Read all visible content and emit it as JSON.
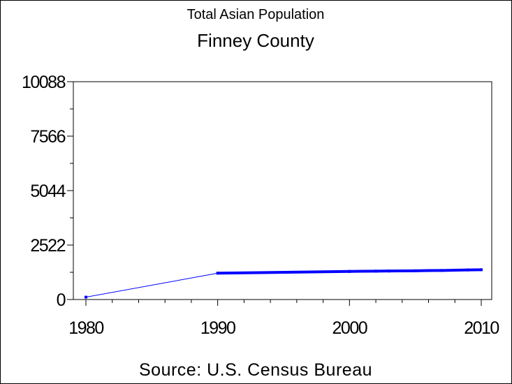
{
  "chart_data": {
    "type": "line",
    "title": "Total Asian Population",
    "subtitle": "Finney County",
    "footnote": "Source: U.S. Census Bureau",
    "xlabel": "",
    "ylabel": "",
    "xlim": [
      1980,
      2010
    ],
    "ylim": [
      0,
      10088
    ],
    "x_ticks": [
      "1980",
      "1990",
      "2000",
      "2010"
    ],
    "y_ticks": [
      "0",
      "2522",
      "5044",
      "7566",
      "10088"
    ],
    "grid": false,
    "legend": "none",
    "series": [
      {
        "color": "#0000ff",
        "points": [
          {
            "x": 1980,
            "y": 110
          },
          {
            "x": 1990,
            "y": 1220
          },
          {
            "x": 2000,
            "y": 1300
          },
          {
            "x": 2001,
            "y": 1310
          },
          {
            "x": 2002,
            "y": 1315
          },
          {
            "x": 2003,
            "y": 1320
          },
          {
            "x": 2004,
            "y": 1325
          },
          {
            "x": 2005,
            "y": 1330
          },
          {
            "x": 2006,
            "y": 1340
          },
          {
            "x": 2007,
            "y": 1345
          },
          {
            "x": 2008,
            "y": 1360
          },
          {
            "x": 2009,
            "y": 1370
          },
          {
            "x": 2010,
            "y": 1380
          }
        ]
      }
    ]
  }
}
